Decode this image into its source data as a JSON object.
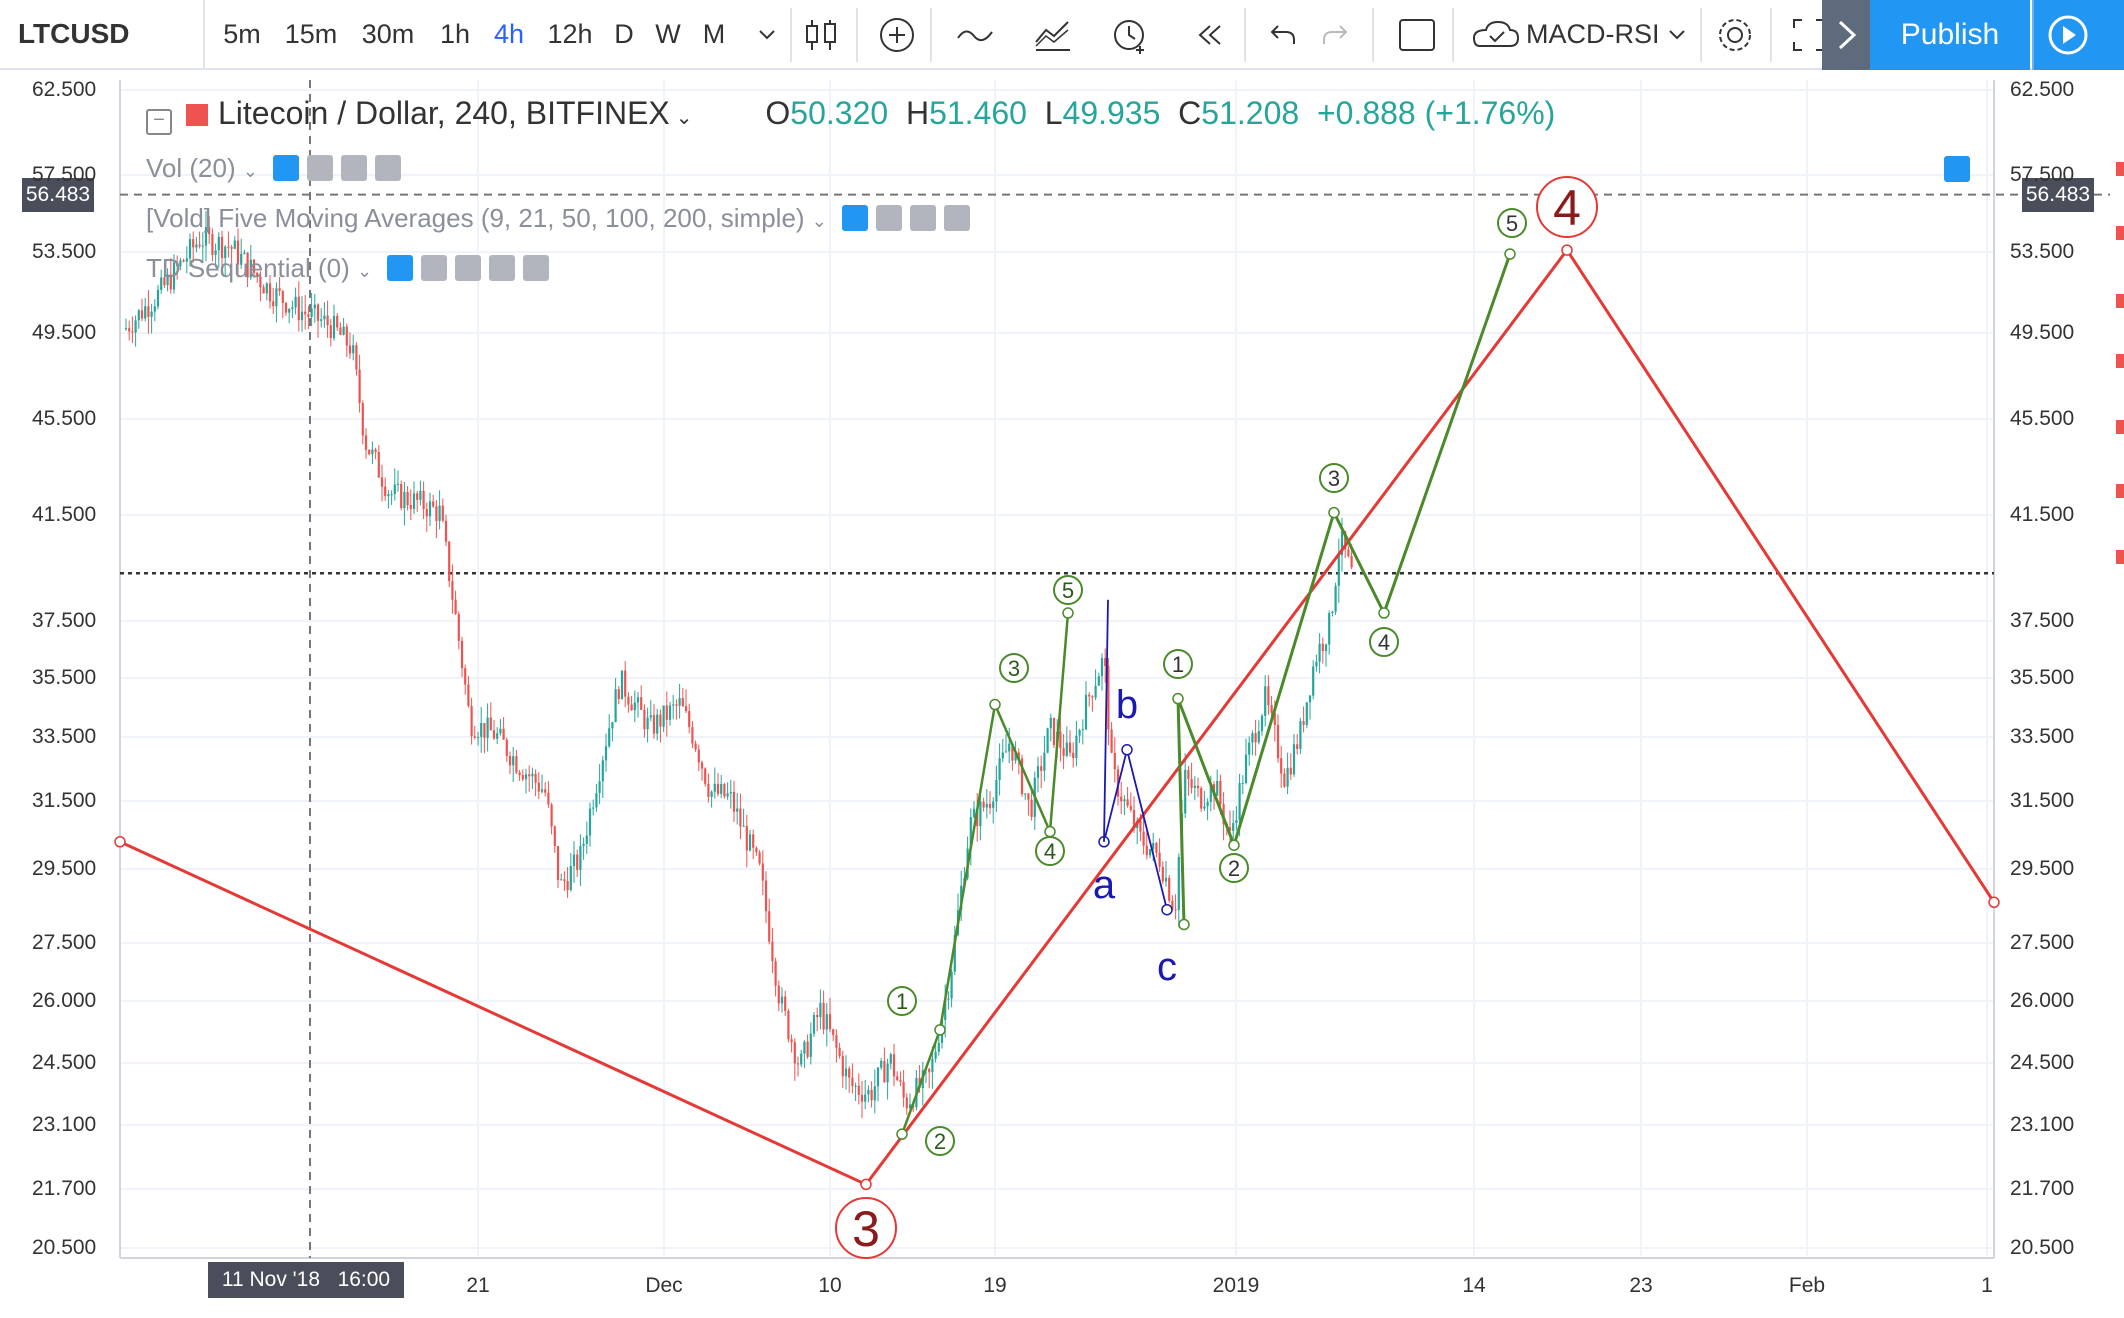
{
  "toolbar": {
    "symbol": "LTCUSD",
    "timeframes": [
      "5m",
      "15m",
      "30m",
      "1h",
      "4h",
      "12h",
      "D",
      "W",
      "M"
    ],
    "active_timeframe": "4h",
    "indicator_template": "MACD-RSI",
    "publish_label": "Publish"
  },
  "legend": {
    "title": "Litecoin / Dollar, 240, BITFINEX",
    "o_label": "O",
    "o_value": "50.320",
    "h_label": "H",
    "h_value": "51.460",
    "l_label": "L",
    "l_value": "49.935",
    "c_label": "C",
    "c_value": "51.208",
    "change": "+0.888 (+1.76%)",
    "studies": [
      "Vol (20)",
      "[Vold] Five Moving Averages (9, 21, 50, 100, 200, simple)",
      "TD Sequential (0)"
    ]
  },
  "crosshair": {
    "price": "56.483",
    "date": "11 Nov '18",
    "time": "16:00"
  },
  "colors": {
    "up": "#26a69a",
    "down": "#ef5350",
    "main_wave": "#e53935",
    "sub_wave": "#4a8a2a",
    "abc": "#1a1ab0",
    "accent": "#2196f3"
  },
  "chart_data": {
    "type": "candlestick",
    "symbol": "LTCUSD",
    "price_ticks": [
      "62.500",
      "57.500",
      "53.500",
      "49.500",
      "45.500",
      "41.500",
      "37.500",
      "35.500",
      "33.500",
      "31.500",
      "29.500",
      "27.500",
      "26.000",
      "24.500",
      "23.100",
      "21.700",
      "20.500"
    ],
    "date_ticks": [
      "21",
      "Dec",
      "10",
      "19",
      "2019",
      "14",
      "23",
      "Feb",
      "1"
    ],
    "reference_price": 39.3,
    "elliott_waves": {
      "main_labels": [
        "3",
        "4"
      ],
      "sub_labels_1": [
        "1",
        "2",
        "3",
        "4",
        "5"
      ],
      "abc_labels": [
        "a",
        "b",
        "c"
      ],
      "sub_labels_2": [
        "1",
        "2",
        "3",
        "4",
        "5"
      ]
    }
  }
}
